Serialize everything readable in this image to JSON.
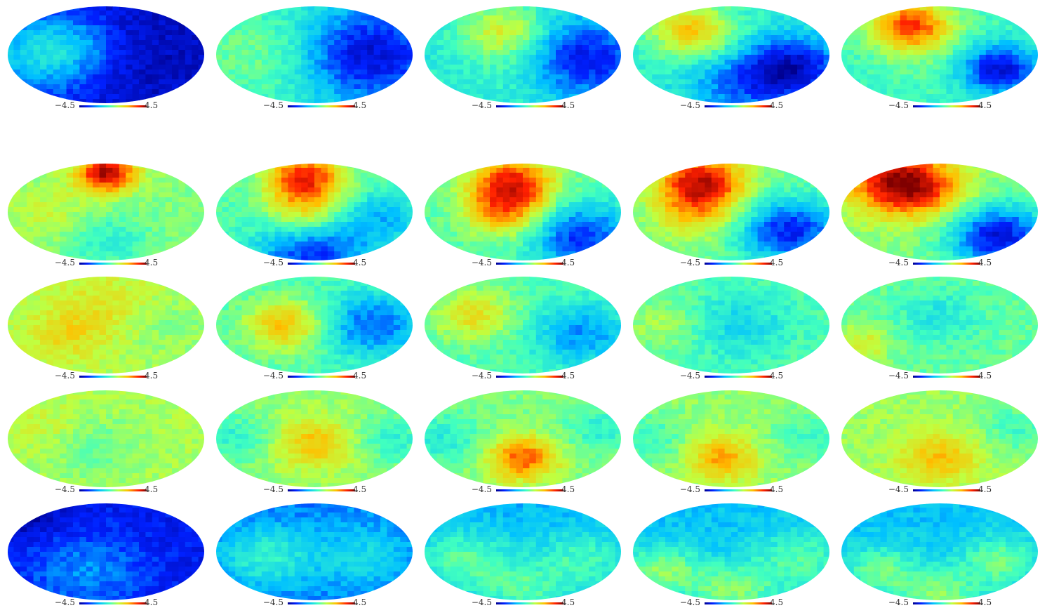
{
  "colorbar": {
    "min_label": "−4.5",
    "max_label": "4.5"
  },
  "colormap": [
    "#00008f",
    "#0020ff",
    "#00c0ff",
    "#40ffc0",
    "#c0ff40",
    "#ffc000",
    "#ff2000",
    "#800000"
  ],
  "grid": {
    "rows": 5,
    "cols": 5
  },
  "panels": [
    {
      "name": "row1-col1",
      "base": 0.1,
      "blobs": [
        [
          0.1,
          0.55,
          0.35,
          0.18
        ],
        [
          0.3,
          0.4,
          0.25,
          0.15
        ],
        [
          0.65,
          0.5,
          0.45,
          -0.05
        ]
      ]
    },
    {
      "name": "row1-col2",
      "base": 0.35,
      "blobs": [
        [
          0.25,
          0.5,
          0.45,
          0.15
        ],
        [
          0.75,
          0.5,
          0.35,
          -0.3
        ]
      ]
    },
    {
      "name": "row1-col3",
      "base": 0.38,
      "blobs": [
        [
          0.4,
          0.25,
          0.2,
          0.22
        ],
        [
          0.55,
          0.6,
          0.3,
          0.08
        ],
        [
          0.8,
          0.55,
          0.3,
          -0.3
        ]
      ]
    },
    {
      "name": "row1-col4",
      "base": 0.4,
      "blobs": [
        [
          0.3,
          0.25,
          0.2,
          0.3
        ],
        [
          0.8,
          0.65,
          0.25,
          -0.35
        ],
        [
          0.5,
          0.85,
          0.25,
          -0.15
        ]
      ]
    },
    {
      "name": "row1-col5",
      "base": 0.42,
      "blobs": [
        [
          0.35,
          0.2,
          0.2,
          0.4
        ],
        [
          0.8,
          0.65,
          0.2,
          -0.35
        ],
        [
          0.5,
          0.45,
          0.3,
          0.05
        ]
      ]
    },
    {
      "name": "row2-col1",
      "base": 0.5,
      "blobs": [
        [
          0.5,
          0.1,
          0.15,
          0.45
        ],
        [
          0.5,
          0.8,
          0.2,
          -0.12
        ],
        [
          0.2,
          0.5,
          0.25,
          0.08
        ]
      ]
    },
    {
      "name": "row2-col2",
      "base": 0.45,
      "blobs": [
        [
          0.45,
          0.15,
          0.2,
          0.4
        ],
        [
          0.45,
          0.5,
          0.2,
          0.2
        ],
        [
          0.5,
          0.95,
          0.3,
          -0.3
        ],
        [
          0.85,
          0.55,
          0.2,
          -0.15
        ]
      ]
    },
    {
      "name": "row2-col3",
      "base": 0.45,
      "blobs": [
        [
          0.45,
          0.2,
          0.22,
          0.4
        ],
        [
          0.4,
          0.5,
          0.2,
          0.25
        ],
        [
          0.8,
          0.75,
          0.25,
          -0.3
        ]
      ]
    },
    {
      "name": "row2-col4",
      "base": 0.48,
      "blobs": [
        [
          0.35,
          0.2,
          0.22,
          0.45
        ],
        [
          0.8,
          0.7,
          0.25,
          -0.35
        ],
        [
          0.3,
          0.55,
          0.2,
          0.15
        ]
      ]
    },
    {
      "name": "row2-col5",
      "base": 0.5,
      "blobs": [
        [
          0.3,
          0.2,
          0.25,
          0.48
        ],
        [
          0.8,
          0.75,
          0.25,
          -0.4
        ],
        [
          0.5,
          0.3,
          0.2,
          0.1
        ]
      ]
    },
    {
      "name": "row3-col1",
      "base": 0.55,
      "blobs": [
        [
          0.3,
          0.6,
          0.2,
          0.1
        ],
        [
          0.5,
          0.3,
          0.25,
          0.08
        ],
        [
          0.8,
          0.5,
          0.25,
          -0.05
        ]
      ]
    },
    {
      "name": "row3-col2",
      "base": 0.45,
      "blobs": [
        [
          0.35,
          0.5,
          0.2,
          0.25
        ],
        [
          0.8,
          0.5,
          0.25,
          -0.25
        ]
      ]
    },
    {
      "name": "row3-col3",
      "base": 0.45,
      "blobs": [
        [
          0.25,
          0.4,
          0.2,
          0.2
        ],
        [
          0.8,
          0.6,
          0.25,
          -0.2
        ]
      ]
    },
    {
      "name": "row3-col4",
      "base": 0.45,
      "blobs": [
        [
          0.55,
          0.5,
          0.25,
          -0.12
        ],
        [
          0.15,
          0.5,
          0.2,
          0.1
        ]
      ]
    },
    {
      "name": "row3-col5",
      "base": 0.47,
      "blobs": [
        [
          0.5,
          0.4,
          0.2,
          -0.1
        ],
        [
          0.1,
          0.7,
          0.15,
          0.15
        ]
      ]
    },
    {
      "name": "row4-col1",
      "base": 0.55,
      "blobs": [
        [
          0.45,
          0.6,
          0.25,
          -0.08
        ],
        [
          0.2,
          0.4,
          0.2,
          0.05
        ]
      ]
    },
    {
      "name": "row4-col2",
      "base": 0.52,
      "blobs": [
        [
          0.5,
          0.55,
          0.2,
          0.18
        ],
        [
          0.1,
          0.5,
          0.2,
          -0.12
        ],
        [
          0.9,
          0.5,
          0.2,
          -0.12
        ]
      ]
    },
    {
      "name": "row4-col3",
      "base": 0.5,
      "blobs": [
        [
          0.5,
          0.7,
          0.18,
          0.3
        ],
        [
          0.1,
          0.5,
          0.2,
          -0.12
        ],
        [
          0.9,
          0.4,
          0.2,
          -0.1
        ]
      ]
    },
    {
      "name": "row4-col4",
      "base": 0.52,
      "blobs": [
        [
          0.45,
          0.7,
          0.18,
          0.22
        ],
        [
          0.1,
          0.5,
          0.2,
          -0.1
        ],
        [
          0.9,
          0.5,
          0.2,
          -0.1
        ]
      ]
    },
    {
      "name": "row4-col5",
      "base": 0.53,
      "blobs": [
        [
          0.5,
          0.7,
          0.2,
          0.18
        ],
        [
          0.9,
          0.4,
          0.2,
          -0.1
        ]
      ]
    },
    {
      "name": "row5-col1",
      "base": 0.12,
      "blobs": [
        [
          0.4,
          0.7,
          0.3,
          0.12
        ],
        [
          0.1,
          0.1,
          0.2,
          -0.1
        ]
      ]
    },
    {
      "name": "row5-col2",
      "base": 0.22,
      "blobs": [
        [
          0.25,
          0.55,
          0.25,
          0.18
        ],
        [
          0.75,
          0.55,
          0.25,
          0.12
        ]
      ]
    },
    {
      "name": "row5-col3",
      "base": 0.28,
      "blobs": [
        [
          0.2,
          0.6,
          0.25,
          0.18
        ],
        [
          0.8,
          0.6,
          0.25,
          0.15
        ],
        [
          0.5,
          0.9,
          0.2,
          0.15
        ]
      ]
    },
    {
      "name": "row5-col4",
      "base": 0.3,
      "blobs": [
        [
          0.15,
          0.7,
          0.2,
          0.22
        ],
        [
          0.85,
          0.6,
          0.25,
          0.15
        ],
        [
          0.5,
          0.9,
          0.2,
          0.2
        ]
      ]
    },
    {
      "name": "row5-col5",
      "base": 0.3,
      "blobs": [
        [
          0.2,
          0.7,
          0.2,
          0.18
        ],
        [
          0.8,
          0.6,
          0.2,
          0.18
        ],
        [
          0.5,
          0.95,
          0.2,
          0.2
        ]
      ]
    }
  ]
}
